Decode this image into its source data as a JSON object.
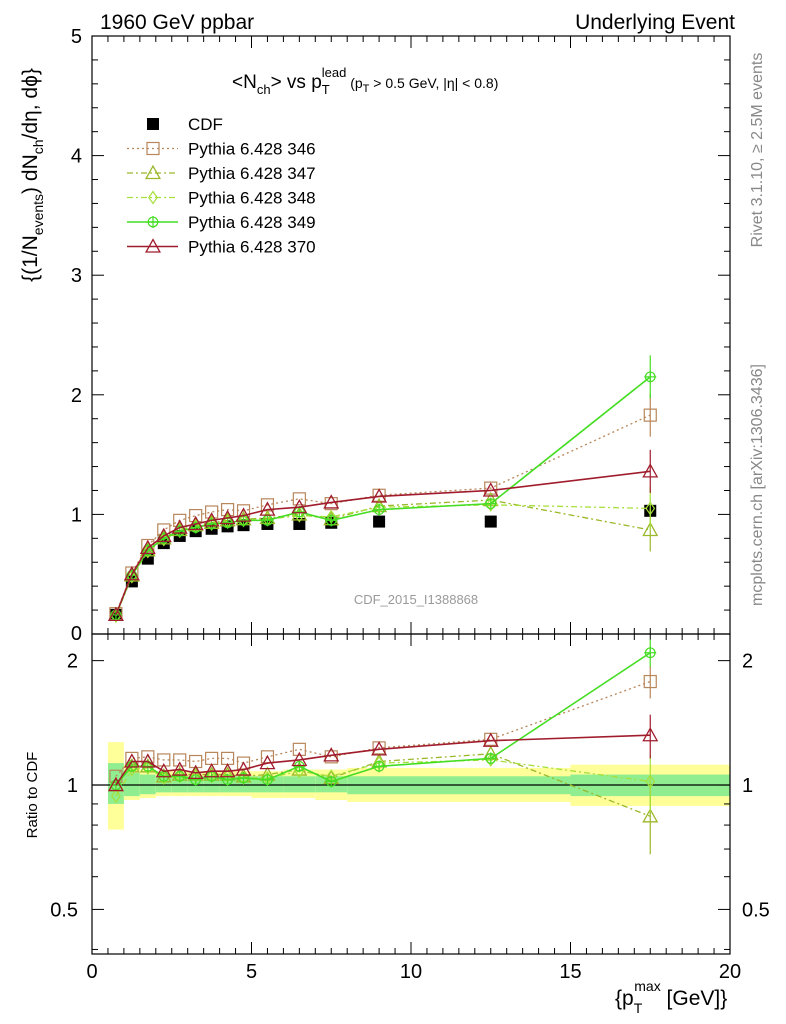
{
  "header": {
    "left": "1960 GeV ppbar",
    "right": "Underlying Event"
  },
  "side": {
    "rivet": "Rivet 3.1.10, ≥ 2.5M events",
    "mcplots": "mcplots.cern.ch [arXiv:1306.3436]"
  },
  "watermark": "CDF_2015_I1388868",
  "chart_data": [
    {
      "type": "scatter",
      "title": "<N_ch> vs p_T^lead (p_T > 0.5 GeV, |η| < 0.8)",
      "ylabel": "{(1/N_events) dN_ch/dη, dϕ}",
      "xlabel": "",
      "xlim": [
        0,
        20
      ],
      "ylim": [
        0,
        5
      ],
      "y_ticks": [
        "1",
        "2",
        "3",
        "4",
        "5"
      ],
      "y_zero_label": "0",
      "legend_position": "top-left",
      "grid": false,
      "series": [
        {
          "name": "CDF",
          "color": "#000000",
          "marker": "filled-square",
          "x": [
            0.75,
            1.25,
            1.75,
            2.25,
            2.75,
            3.25,
            3.75,
            4.25,
            4.75,
            5.5,
            6.5,
            7.5,
            9.0,
            12.5,
            17.5
          ],
          "y": [
            0.16,
            0.44,
            0.63,
            0.76,
            0.82,
            0.86,
            0.88,
            0.9,
            0.91,
            0.92,
            0.92,
            0.93,
            0.94,
            0.94,
            1.03
          ]
        },
        {
          "name": "Pythia 6.428 346",
          "color": "#b8865a",
          "marker": "open-square",
          "line": "dotted",
          "x": [
            0.75,
            1.25,
            1.75,
            2.25,
            2.75,
            3.25,
            3.75,
            4.25,
            4.75,
            5.5,
            6.5,
            7.5,
            9.0,
            12.5,
            17.5
          ],
          "y": [
            0.17,
            0.51,
            0.74,
            0.87,
            0.95,
            0.99,
            1.02,
            1.04,
            1.03,
            1.08,
            1.13,
            1.09,
            1.16,
            1.22,
            1.83
          ]
        },
        {
          "name": "Pythia 6.428 347",
          "color": "#9ab82a",
          "marker": "open-triangle",
          "line": "dash-dot",
          "x": [
            0.75,
            1.25,
            1.75,
            2.25,
            2.75,
            3.25,
            3.75,
            4.25,
            4.75,
            5.5,
            6.5,
            7.5,
            9.0,
            12.5,
            17.5
          ],
          "y": [
            0.16,
            0.49,
            0.7,
            0.8,
            0.87,
            0.91,
            0.93,
            0.95,
            0.96,
            0.97,
            1.0,
            0.96,
            1.07,
            1.12,
            0.87
          ]
        },
        {
          "name": "Pythia 6.428 348",
          "color": "#a6e03a",
          "marker": "open-diamond",
          "line": "dash-dot",
          "x": [
            0.75,
            1.25,
            1.75,
            2.25,
            2.75,
            3.25,
            3.75,
            4.25,
            4.75,
            5.5,
            6.5,
            7.5,
            9.0,
            12.5,
            17.5
          ],
          "y": [
            0.15,
            0.48,
            0.69,
            0.79,
            0.86,
            0.9,
            0.92,
            0.94,
            0.95,
            0.96,
            0.99,
            0.98,
            1.06,
            1.08,
            1.05
          ]
        },
        {
          "name": "Pythia 6.428 349",
          "color": "#44dd22",
          "marker": "open-cross-circle",
          "line": "solid",
          "x": [
            0.75,
            1.25,
            1.75,
            2.25,
            2.75,
            3.25,
            3.75,
            4.25,
            4.75,
            5.5,
            6.5,
            7.5,
            9.0,
            12.5,
            17.5
          ],
          "y": [
            0.16,
            0.49,
            0.7,
            0.8,
            0.86,
            0.89,
            0.92,
            0.93,
            0.95,
            0.95,
            1.02,
            0.95,
            1.04,
            1.09,
            2.15
          ]
        },
        {
          "name": "Pythia 6.428 370",
          "color": "#a01c2c",
          "marker": "open-triangle",
          "line": "solid",
          "x": [
            0.75,
            1.25,
            1.75,
            2.25,
            2.75,
            3.25,
            3.75,
            4.25,
            4.75,
            5.5,
            6.5,
            7.5,
            9.0,
            12.5,
            17.5
          ],
          "y": [
            0.16,
            0.5,
            0.72,
            0.82,
            0.89,
            0.92,
            0.95,
            0.97,
            0.99,
            1.04,
            1.06,
            1.1,
            1.15,
            1.2,
            1.36
          ]
        }
      ]
    },
    {
      "type": "scatter",
      "title": "",
      "ylabel": "Ratio to CDF",
      "xlabel": "{p_T^max [GeV]}",
      "xlim": [
        0,
        20
      ],
      "ylim": [
        0.39,
        2.32
      ],
      "y_ticks": [
        "0.5",
        "1",
        "2"
      ],
      "x_ticks": [
        "0",
        "5",
        "10",
        "15",
        "20"
      ],
      "reference_line": 1,
      "uncertainty_bands": {
        "x_edges": [
          0.5,
          1.0,
          1.5,
          2.0,
          2.5,
          3.0,
          3.5,
          4.0,
          4.5,
          5.0,
          6.0,
          7.0,
          8.0,
          10.0,
          15.0,
          20.0
        ],
        "inner_color": "#90ee90",
        "outer_color": "#ffff99",
        "inner_low": [
          0.9,
          0.94,
          0.95,
          0.96,
          0.96,
          0.96,
          0.96,
          0.96,
          0.96,
          0.96,
          0.96,
          0.96,
          0.95,
          0.95,
          0.94
        ],
        "inner_high": [
          1.13,
          1.07,
          1.06,
          1.05,
          1.05,
          1.05,
          1.05,
          1.05,
          1.05,
          1.05,
          1.05,
          1.05,
          1.05,
          1.05,
          1.06
        ],
        "outer_low": [
          0.78,
          0.92,
          0.93,
          0.94,
          0.94,
          0.94,
          0.94,
          0.94,
          0.94,
          0.93,
          0.93,
          0.92,
          0.91,
          0.91,
          0.89
        ],
        "outer_high": [
          1.27,
          1.12,
          1.09,
          1.08,
          1.08,
          1.08,
          1.08,
          1.08,
          1.08,
          1.08,
          1.09,
          1.09,
          1.1,
          1.1,
          1.12
        ]
      },
      "series": [
        {
          "name": "Pythia 6.428 346",
          "color": "#b8865a",
          "marker": "open-square",
          "line": "dotted",
          "x": [
            0.75,
            1.25,
            1.75,
            2.25,
            2.75,
            3.25,
            3.75,
            4.25,
            4.75,
            5.5,
            6.5,
            7.5,
            9.0,
            12.5,
            17.5
          ],
          "y": [
            1.05,
            1.16,
            1.17,
            1.15,
            1.15,
            1.14,
            1.16,
            1.16,
            1.13,
            1.17,
            1.22,
            1.17,
            1.23,
            1.29,
            1.78
          ]
        },
        {
          "name": "Pythia 6.428 347",
          "color": "#9ab82a",
          "marker": "open-triangle",
          "line": "dash-dot",
          "x": [
            0.75,
            1.25,
            1.75,
            2.25,
            2.75,
            3.25,
            3.75,
            4.25,
            4.75,
            5.5,
            6.5,
            7.5,
            9.0,
            12.5,
            17.5
          ],
          "y": [
            1.0,
            1.11,
            1.11,
            1.05,
            1.06,
            1.06,
            1.06,
            1.06,
            1.05,
            1.06,
            1.09,
            1.04,
            1.14,
            1.19,
            0.84
          ]
        },
        {
          "name": "Pythia 6.428 348",
          "color": "#a6e03a",
          "marker": "open-diamond",
          "line": "dash-dot",
          "x": [
            0.75,
            1.25,
            1.75,
            2.25,
            2.75,
            3.25,
            3.75,
            4.25,
            4.75,
            5.5,
            6.5,
            7.5,
            9.0,
            12.5,
            17.5
          ],
          "y": [
            0.94,
            1.09,
            1.1,
            1.04,
            1.05,
            1.05,
            1.05,
            1.05,
            1.04,
            1.04,
            1.08,
            1.05,
            1.13,
            1.15,
            1.02
          ]
        },
        {
          "name": "Pythia 6.428 349",
          "color": "#44dd22",
          "marker": "open-cross-circle",
          "line": "solid",
          "x": [
            0.75,
            1.25,
            1.75,
            2.25,
            2.75,
            3.25,
            3.75,
            4.25,
            4.75,
            5.5,
            6.5,
            7.5,
            9.0,
            12.5,
            17.5
          ],
          "y": [
            1.0,
            1.11,
            1.11,
            1.05,
            1.05,
            1.03,
            1.05,
            1.03,
            1.04,
            1.03,
            1.11,
            1.02,
            1.11,
            1.16,
            2.09
          ]
        },
        {
          "name": "Pythia 6.428 370",
          "color": "#a01c2c",
          "marker": "open-triangle",
          "line": "solid",
          "x": [
            0.75,
            1.25,
            1.75,
            2.25,
            2.75,
            3.25,
            3.75,
            4.25,
            4.75,
            5.5,
            6.5,
            7.5,
            9.0,
            12.5,
            17.5
          ],
          "y": [
            1.0,
            1.14,
            1.14,
            1.08,
            1.09,
            1.07,
            1.08,
            1.08,
            1.09,
            1.13,
            1.15,
            1.18,
            1.22,
            1.28,
            1.32
          ]
        }
      ]
    }
  ]
}
